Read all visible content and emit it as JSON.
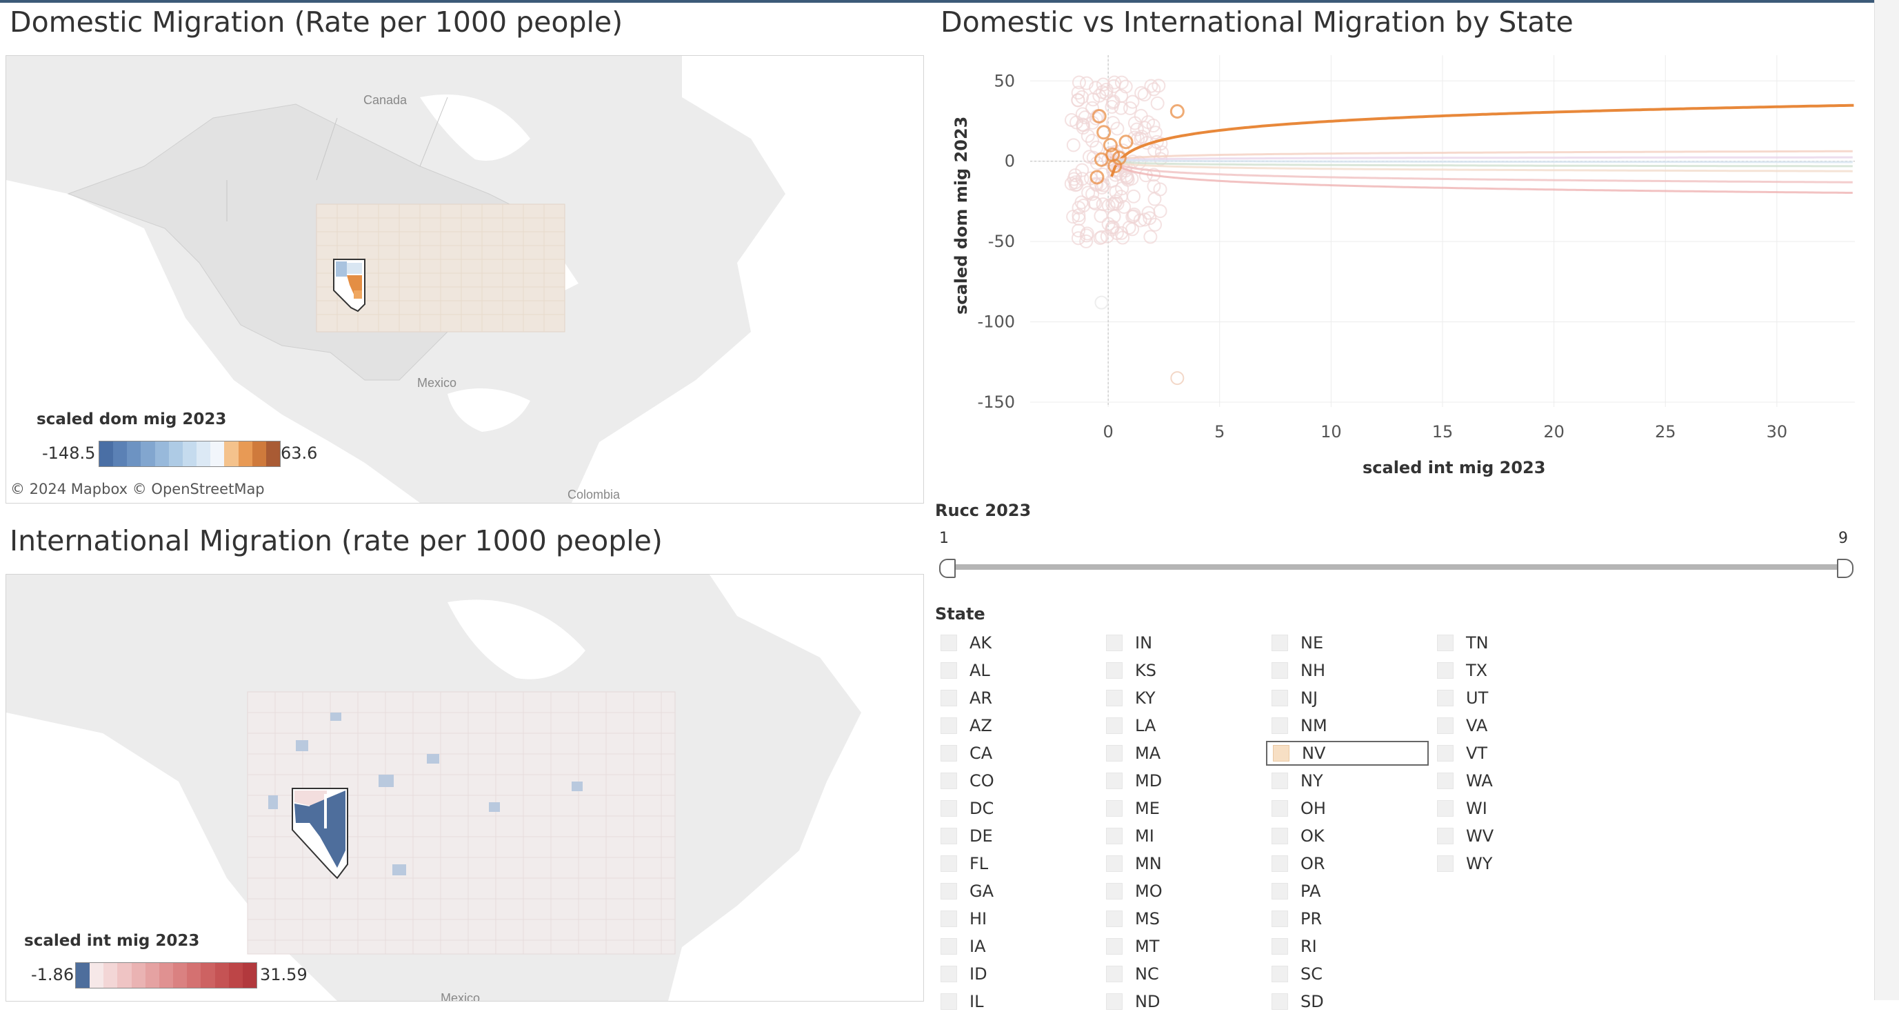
{
  "titles": {
    "dom_map": "Domestic Migration (Rate per 1000 people)",
    "scatter": "Domestic vs International Migration by State",
    "int_map": "International Migration (rate per 1000 people)"
  },
  "dom_map": {
    "labels": {
      "canada": "Canada",
      "mexico": "Mexico",
      "colombia": "Colombia"
    },
    "legend": {
      "title": "scaled dom mig 2023",
      "min": "-148.5",
      "max": "63.6",
      "colors": [
        "#4a6fa5",
        "#5b81b5",
        "#6d93c2",
        "#82a6cf",
        "#98b9db",
        "#aecbe5",
        "#c5dbee",
        "#dce9f5",
        "#f2f6fb",
        "#f4c28c",
        "#e89a55",
        "#cf7a3c",
        "#a95b34"
      ]
    },
    "credits": "© 2024 Mapbox  © OpenStreetMap"
  },
  "int_map": {
    "labels": {
      "mexico": "Mexico"
    },
    "legend": {
      "title": "scaled int mig 2023",
      "min": "-1.86",
      "max": "31.59",
      "colors": [
        "#4e6e9c",
        "#f6e8e8",
        "#f3d6d6",
        "#efc4c4",
        "#eab3b3",
        "#e5a2a2",
        "#e09191",
        "#da8181",
        "#d47171",
        "#cd6262",
        "#c55354",
        "#bd4547",
        "#b2393d"
      ]
    }
  },
  "chart_data": {
    "type": "scatter",
    "xlabel": "scaled int mig 2023",
    "ylabel": "scaled dom mig 2023",
    "xlim": [
      -3.5,
      33.5
    ],
    "ylim": [
      -153,
      66
    ],
    "xticks": [
      0,
      5,
      10,
      15,
      20,
      25,
      30
    ],
    "yticks": [
      50,
      0,
      -50,
      -100,
      -150
    ],
    "highlight_color": "#e8883a",
    "highlight_points": [
      [
        -0.4,
        28
      ],
      [
        -0.2,
        18
      ],
      [
        0.1,
        10
      ],
      [
        0.2,
        4
      ],
      [
        -0.3,
        1
      ],
      [
        0.3,
        -3
      ],
      [
        0.5,
        2
      ],
      [
        -0.5,
        -10
      ],
      [
        3.1,
        31
      ],
      [
        0.8,
        12
      ]
    ],
    "trend_lines": [
      {
        "color": "#e8883a",
        "a": 6.0,
        "b": 8.2,
        "x0": 0.15
      },
      {
        "color": "#efb3b3",
        "a": -6,
        "b": -3.9,
        "x0": 0.1
      },
      {
        "color": "#f0c0c0",
        "a": -4,
        "b": -2.6,
        "x0": 0.1
      },
      {
        "color": "#f4d0c0",
        "a": 2,
        "b": 1.2,
        "x0": 0.1
      },
      {
        "color": "#e8d4e8",
        "a": 1,
        "b": 0.4,
        "x0": 0.1
      },
      {
        "color": "#cfe0cf",
        "a": -1,
        "b": -0.6,
        "x0": 0.1
      },
      {
        "color": "#d6e4f0",
        "a": 0.5,
        "b": -0.3,
        "x0": 0.1
      },
      {
        "color": "#f2dccc",
        "a": -2,
        "b": -1.2,
        "x0": 0.1
      }
    ]
  },
  "rucc": {
    "title": "Rucc 2023",
    "min": "1",
    "max": "9"
  },
  "state_filter": {
    "title": "State",
    "selected": "NV",
    "columns": [
      [
        "AK",
        "AL",
        "AR",
        "AZ",
        "CA",
        "CO",
        "DC",
        "DE",
        "FL",
        "GA",
        "HI",
        "IA",
        "ID",
        "IL"
      ],
      [
        "IN",
        "KS",
        "KY",
        "LA",
        "MA",
        "MD",
        "ME",
        "MI",
        "MN",
        "MO",
        "MS",
        "MT",
        "NC",
        "ND"
      ],
      [
        "NE",
        "NH",
        "NJ",
        "NM",
        "NV",
        "NY",
        "OH",
        "OK",
        "OR",
        "PA",
        "PR",
        "RI",
        "SC",
        "SD"
      ],
      [
        "TN",
        "TX",
        "UT",
        "VA",
        "VT",
        "WA",
        "WI",
        "WV",
        "WY"
      ]
    ]
  }
}
